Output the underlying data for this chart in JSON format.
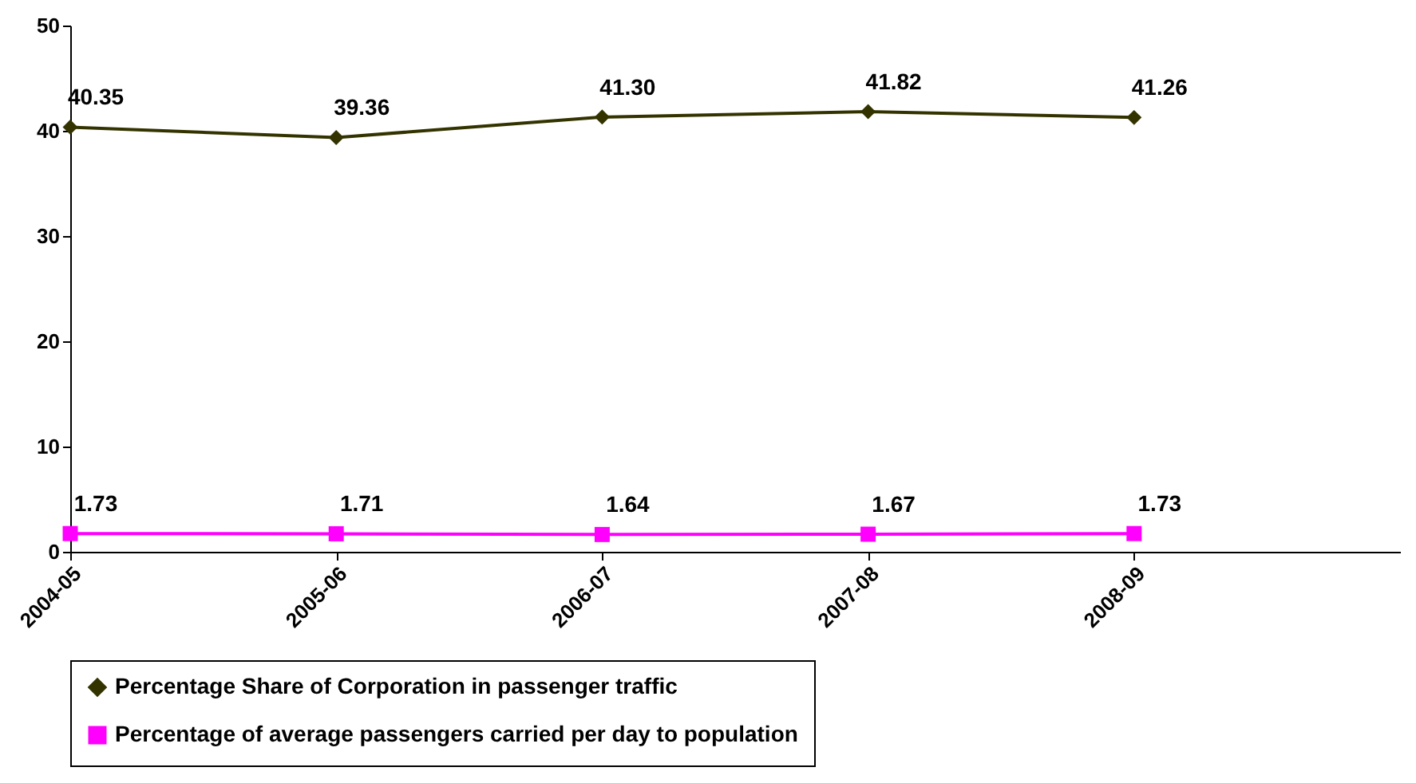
{
  "chart_data": {
    "type": "line",
    "categories": [
      "2004-05",
      "2005-06",
      "2006-07",
      "2007-08",
      "2008-09"
    ],
    "series": [
      {
        "name": "Percentage Share of Corporation in passenger traffic",
        "color": "#333300",
        "marker": "diamond",
        "values": [
          40.35,
          39.36,
          41.3,
          41.82,
          41.26
        ],
        "value_labels": [
          "40.35",
          "39.36",
          "41.30",
          "41.82",
          "41.26"
        ]
      },
      {
        "name": "Percentage of average passengers carried per day to population",
        "color": "#ff00ff",
        "marker": "square",
        "values": [
          1.73,
          1.71,
          1.64,
          1.67,
          1.73
        ],
        "value_labels": [
          "1.73",
          "1.71",
          "1.64",
          "1.67",
          "1.73"
        ]
      }
    ],
    "ylim": [
      0,
      50
    ],
    "yticks": [
      0,
      10,
      20,
      30,
      40,
      50
    ],
    "grid": false,
    "legend": "bottom",
    "line_style": "solid"
  }
}
